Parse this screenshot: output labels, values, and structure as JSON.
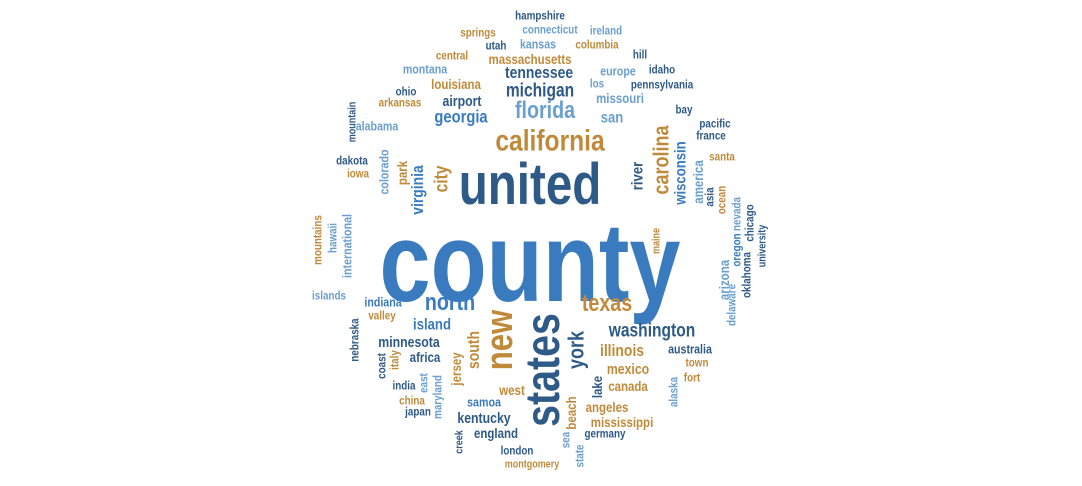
{
  "chart_data": {
    "type": "wordcloud",
    "palette": {
      "dark_blue": "#2e5a87",
      "mid_blue": "#3a7bbf",
      "light_blue": "#6a9fcf",
      "gold": "#c08a3a"
    },
    "words": [
      {
        "text": "county",
        "rank": 1,
        "color": "#3a7bbf"
      },
      {
        "text": "united",
        "rank": 2,
        "color": "#2e5a87"
      },
      {
        "text": "states",
        "rank": 3,
        "color": "#2e5a87"
      },
      {
        "text": "new",
        "rank": 4,
        "color": "#c08a3a"
      },
      {
        "text": "california",
        "rank": 5,
        "color": "#c08a3a"
      },
      {
        "text": "florida",
        "rank": 6,
        "color": "#6a9fcf"
      },
      {
        "text": "texas",
        "rank": 7,
        "color": "#c08a3a"
      },
      {
        "text": "york",
        "rank": 8,
        "color": "#2e5a87"
      },
      {
        "text": "north",
        "rank": 9,
        "color": "#3a7bbf"
      },
      {
        "text": "carolina",
        "rank": 10,
        "color": "#c08a3a"
      },
      {
        "text": "washington",
        "rank": 11,
        "color": "#2e5a87"
      },
      {
        "text": "michigan",
        "rank": 12,
        "color": "#2e5a87"
      },
      {
        "text": "city",
        "rank": 13,
        "color": "#c08a3a"
      },
      {
        "text": "virginia",
        "rank": 14,
        "color": "#3a7bbf"
      },
      {
        "text": "georgia",
        "rank": 15,
        "color": "#3a7bbf"
      },
      {
        "text": "south",
        "rank": 16,
        "color": "#c08a3a"
      },
      {
        "text": "illinois",
        "rank": 17,
        "color": "#c08a3a"
      },
      {
        "text": "tennessee",
        "rank": 18,
        "color": "#2e5a87"
      },
      {
        "text": "island",
        "rank": 19,
        "color": "#3a7bbf"
      },
      {
        "text": "wisconsin",
        "rank": 20,
        "color": "#3a7bbf"
      },
      {
        "text": "river",
        "rank": 21,
        "color": "#2e5a87"
      },
      {
        "text": "mexico",
        "rank": 22,
        "color": "#c08a3a"
      },
      {
        "text": "minnesota",
        "rank": 23,
        "color": "#2e5a87"
      },
      {
        "text": "airport",
        "rank": 24,
        "color": "#2e5a87"
      },
      {
        "text": "san",
        "rank": 25,
        "color": "#6a9fcf"
      },
      {
        "text": "louisiana",
        "rank": 26,
        "color": "#c08a3a"
      },
      {
        "text": "massachusetts",
        "rank": 27,
        "color": "#c08a3a"
      },
      {
        "text": "missouri",
        "rank": 28,
        "color": "#6a9fcf"
      },
      {
        "text": "jersey",
        "rank": 29,
        "color": "#c08a3a"
      },
      {
        "text": "kentucky",
        "rank": 30,
        "color": "#2e5a87"
      },
      {
        "text": "mississippi",
        "rank": 31,
        "color": "#c08a3a"
      },
      {
        "text": "angeles",
        "rank": 32,
        "color": "#c08a3a"
      },
      {
        "text": "lake",
        "rank": 33,
        "color": "#2e5a87"
      },
      {
        "text": "america",
        "rank": 34,
        "color": "#6a9fcf"
      },
      {
        "text": "park",
        "rank": 35,
        "color": "#c08a3a"
      },
      {
        "text": "australia",
        "rank": 36,
        "color": "#2e5a87"
      },
      {
        "text": "canada",
        "rank": 37,
        "color": "#c08a3a"
      },
      {
        "text": "africa",
        "rank": 38,
        "color": "#2e5a87"
      },
      {
        "text": "england",
        "rank": 39,
        "color": "#2e5a87"
      },
      {
        "text": "indiana",
        "rank": 40,
        "color": "#3a7bbf"
      },
      {
        "text": "west",
        "rank": 41,
        "color": "#c08a3a"
      },
      {
        "text": "samoa",
        "rank": 42,
        "color": "#3a7bbf"
      },
      {
        "text": "beach",
        "rank": 43,
        "color": "#c08a3a"
      },
      {
        "text": "arizona",
        "rank": 44,
        "color": "#6a9fcf"
      },
      {
        "text": "europe",
        "rank": 45,
        "color": "#6a9fcf"
      },
      {
        "text": "montana",
        "rank": 46,
        "color": "#6a9fcf"
      },
      {
        "text": "colorado",
        "rank": 47,
        "color": "#6a9fcf"
      },
      {
        "text": "alabama",
        "rank": 48,
        "color": "#6a9fcf"
      },
      {
        "text": "kansas",
        "rank": 49,
        "color": "#6a9fcf"
      },
      {
        "text": "columbia",
        "rank": 50,
        "color": "#c08a3a"
      },
      {
        "text": "connecticut",
        "rank": 51,
        "color": "#6a9fcf"
      },
      {
        "text": "ireland",
        "rank": 52,
        "color": "#6a9fcf"
      },
      {
        "text": "hampshire",
        "rank": 53,
        "color": "#2e5a87"
      },
      {
        "text": "springs",
        "rank": 54,
        "color": "#c08a3a"
      },
      {
        "text": "utah",
        "rank": 55,
        "color": "#2e5a87"
      },
      {
        "text": "central",
        "rank": 56,
        "color": "#c08a3a"
      },
      {
        "text": "idaho",
        "rank": 57,
        "color": "#2e5a87"
      },
      {
        "text": "hill",
        "rank": 58,
        "color": "#2e5a87"
      },
      {
        "text": "los",
        "rank": 59,
        "color": "#6a9fcf"
      },
      {
        "text": "pennsylvania",
        "rank": 60,
        "color": "#2e5a87"
      },
      {
        "text": "arkansas",
        "rank": 61,
        "color": "#c08a3a"
      },
      {
        "text": "ohio",
        "rank": 62,
        "color": "#2e5a87"
      },
      {
        "text": "bay",
        "rank": 63,
        "color": "#2e5a87"
      },
      {
        "text": "pacific",
        "rank": 64,
        "color": "#2e5a87"
      },
      {
        "text": "france",
        "rank": 65,
        "color": "#2e5a87"
      },
      {
        "text": "santa",
        "rank": 66,
        "color": "#c08a3a"
      },
      {
        "text": "mountain",
        "rank": 67,
        "color": "#2e5a87"
      },
      {
        "text": "dakota",
        "rank": 68,
        "color": "#2e5a87"
      },
      {
        "text": "iowa",
        "rank": 69,
        "color": "#c08a3a"
      },
      {
        "text": "asia",
        "rank": 70,
        "color": "#2e5a87"
      },
      {
        "text": "ocean",
        "rank": 71,
        "color": "#c08a3a"
      },
      {
        "text": "nevada",
        "rank": 72,
        "color": "#6a9fcf"
      },
      {
        "text": "chicago",
        "rank": 73,
        "color": "#2e5a87"
      },
      {
        "text": "oregon",
        "rank": 74,
        "color": "#3a7bbf"
      },
      {
        "text": "oklahoma",
        "rank": 75,
        "color": "#2e5a87"
      },
      {
        "text": "university",
        "rank": 76,
        "color": "#2e5a87"
      },
      {
        "text": "delaware",
        "rank": 77,
        "color": "#6a9fcf"
      },
      {
        "text": "maine",
        "rank": 78,
        "color": "#c08a3a"
      },
      {
        "text": "international",
        "rank": 79,
        "color": "#6a9fcf"
      },
      {
        "text": "hawaii",
        "rank": 80,
        "color": "#6a9fcf"
      },
      {
        "text": "mountains",
        "rank": 81,
        "color": "#c08a3a"
      },
      {
        "text": "islands",
        "rank": 82,
        "color": "#6a9fcf"
      },
      {
        "text": "valley",
        "rank": 83,
        "color": "#c08a3a"
      },
      {
        "text": "nebraska",
        "rank": 84,
        "color": "#2e5a87"
      },
      {
        "text": "coast",
        "rank": 85,
        "color": "#2e5a87"
      },
      {
        "text": "italy",
        "rank": 86,
        "color": "#c08a3a"
      },
      {
        "text": "maryland",
        "rank": 87,
        "color": "#6a9fcf"
      },
      {
        "text": "east",
        "rank": 88,
        "color": "#6a9fcf"
      },
      {
        "text": "india",
        "rank": 89,
        "color": "#2e5a87"
      },
      {
        "text": "china",
        "rank": 90,
        "color": "#c08a3a"
      },
      {
        "text": "japan",
        "rank": 91,
        "color": "#2e5a87"
      },
      {
        "text": "creek",
        "rank": 92,
        "color": "#2e5a87"
      },
      {
        "text": "london",
        "rank": 93,
        "color": "#2e5a87"
      },
      {
        "text": "montgomery",
        "rank": 94,
        "color": "#c08a3a"
      },
      {
        "text": "sea",
        "rank": 95,
        "color": "#6a9fcf"
      },
      {
        "text": "state",
        "rank": 96,
        "color": "#6a9fcf"
      },
      {
        "text": "germany",
        "rank": 97,
        "color": "#2e5a87"
      },
      {
        "text": "town",
        "rank": 98,
        "color": "#c08a3a"
      },
      {
        "text": "fort",
        "rank": 99,
        "color": "#c08a3a"
      },
      {
        "text": "alaska",
        "rank": 100,
        "color": "#6a9fcf"
      }
    ]
  }
}
